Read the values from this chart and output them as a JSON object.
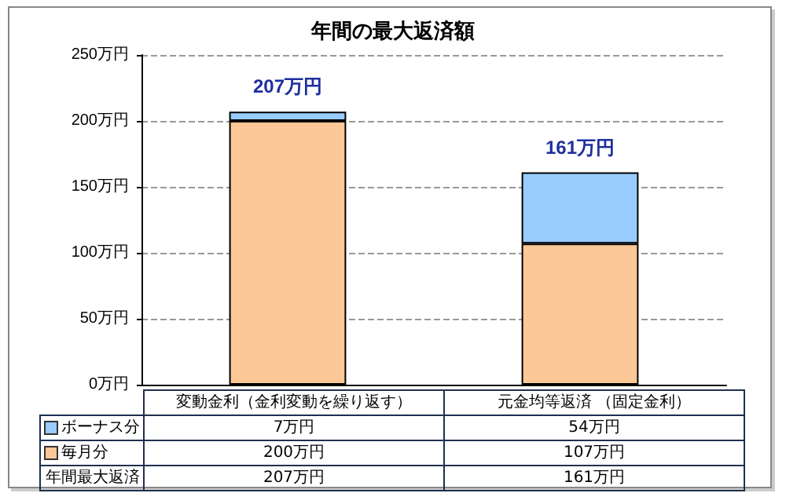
{
  "chart_data": {
    "type": "bar",
    "title": "年間の最大返済額",
    "stacked": true,
    "categories": [
      "変動金利（金利変動を繰り返す）",
      "元金均等返済 （固定金利）"
    ],
    "series": [
      {
        "name": "毎月分",
        "color": "#fcc898",
        "values": [
          200,
          107
        ],
        "value_labels": [
          "200万円",
          "107万円"
        ]
      },
      {
        "name": "ボーナス分",
        "color": "#99ccff",
        "values": [
          7,
          54
        ],
        "value_labels": [
          "7万円",
          "54万円"
        ]
      }
    ],
    "totals": [
      "207万円",
      "161万円"
    ],
    "annotations": [
      "年間最大返済"
    ],
    "ylim": [
      0,
      250
    ],
    "yticks": [
      {
        "value": 0,
        "label": "0万円"
      },
      {
        "value": 50,
        "label": "50万円"
      },
      {
        "value": 100,
        "label": "100万円"
      },
      {
        "value": 150,
        "label": "150万円"
      },
      {
        "value": 200,
        "label": "200万円"
      },
      {
        "value": 250,
        "label": "250万円"
      }
    ],
    "grid": "y",
    "legend": "bottom"
  }
}
